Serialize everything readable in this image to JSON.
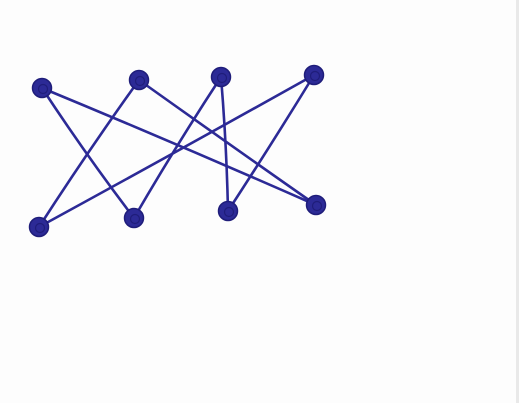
{
  "diagram": {
    "ink_color": "#2c2a96",
    "ink_dark": "#1f1d7a",
    "paper_color": "#fdfdfd",
    "top_nodes": [
      "t1",
      "t2",
      "t3",
      "t4"
    ],
    "bottom_nodes": [
      "b1",
      "b2",
      "b3",
      "b4"
    ],
    "edges": [
      [
        "t1",
        "b2"
      ],
      [
        "t1",
        "b4"
      ],
      [
        "t2",
        "b1"
      ],
      [
        "t2",
        "b4"
      ],
      [
        "t3",
        "b2"
      ],
      [
        "t3",
        "b3"
      ],
      [
        "t4",
        "b1"
      ],
      [
        "t4",
        "b3"
      ]
    ]
  }
}
